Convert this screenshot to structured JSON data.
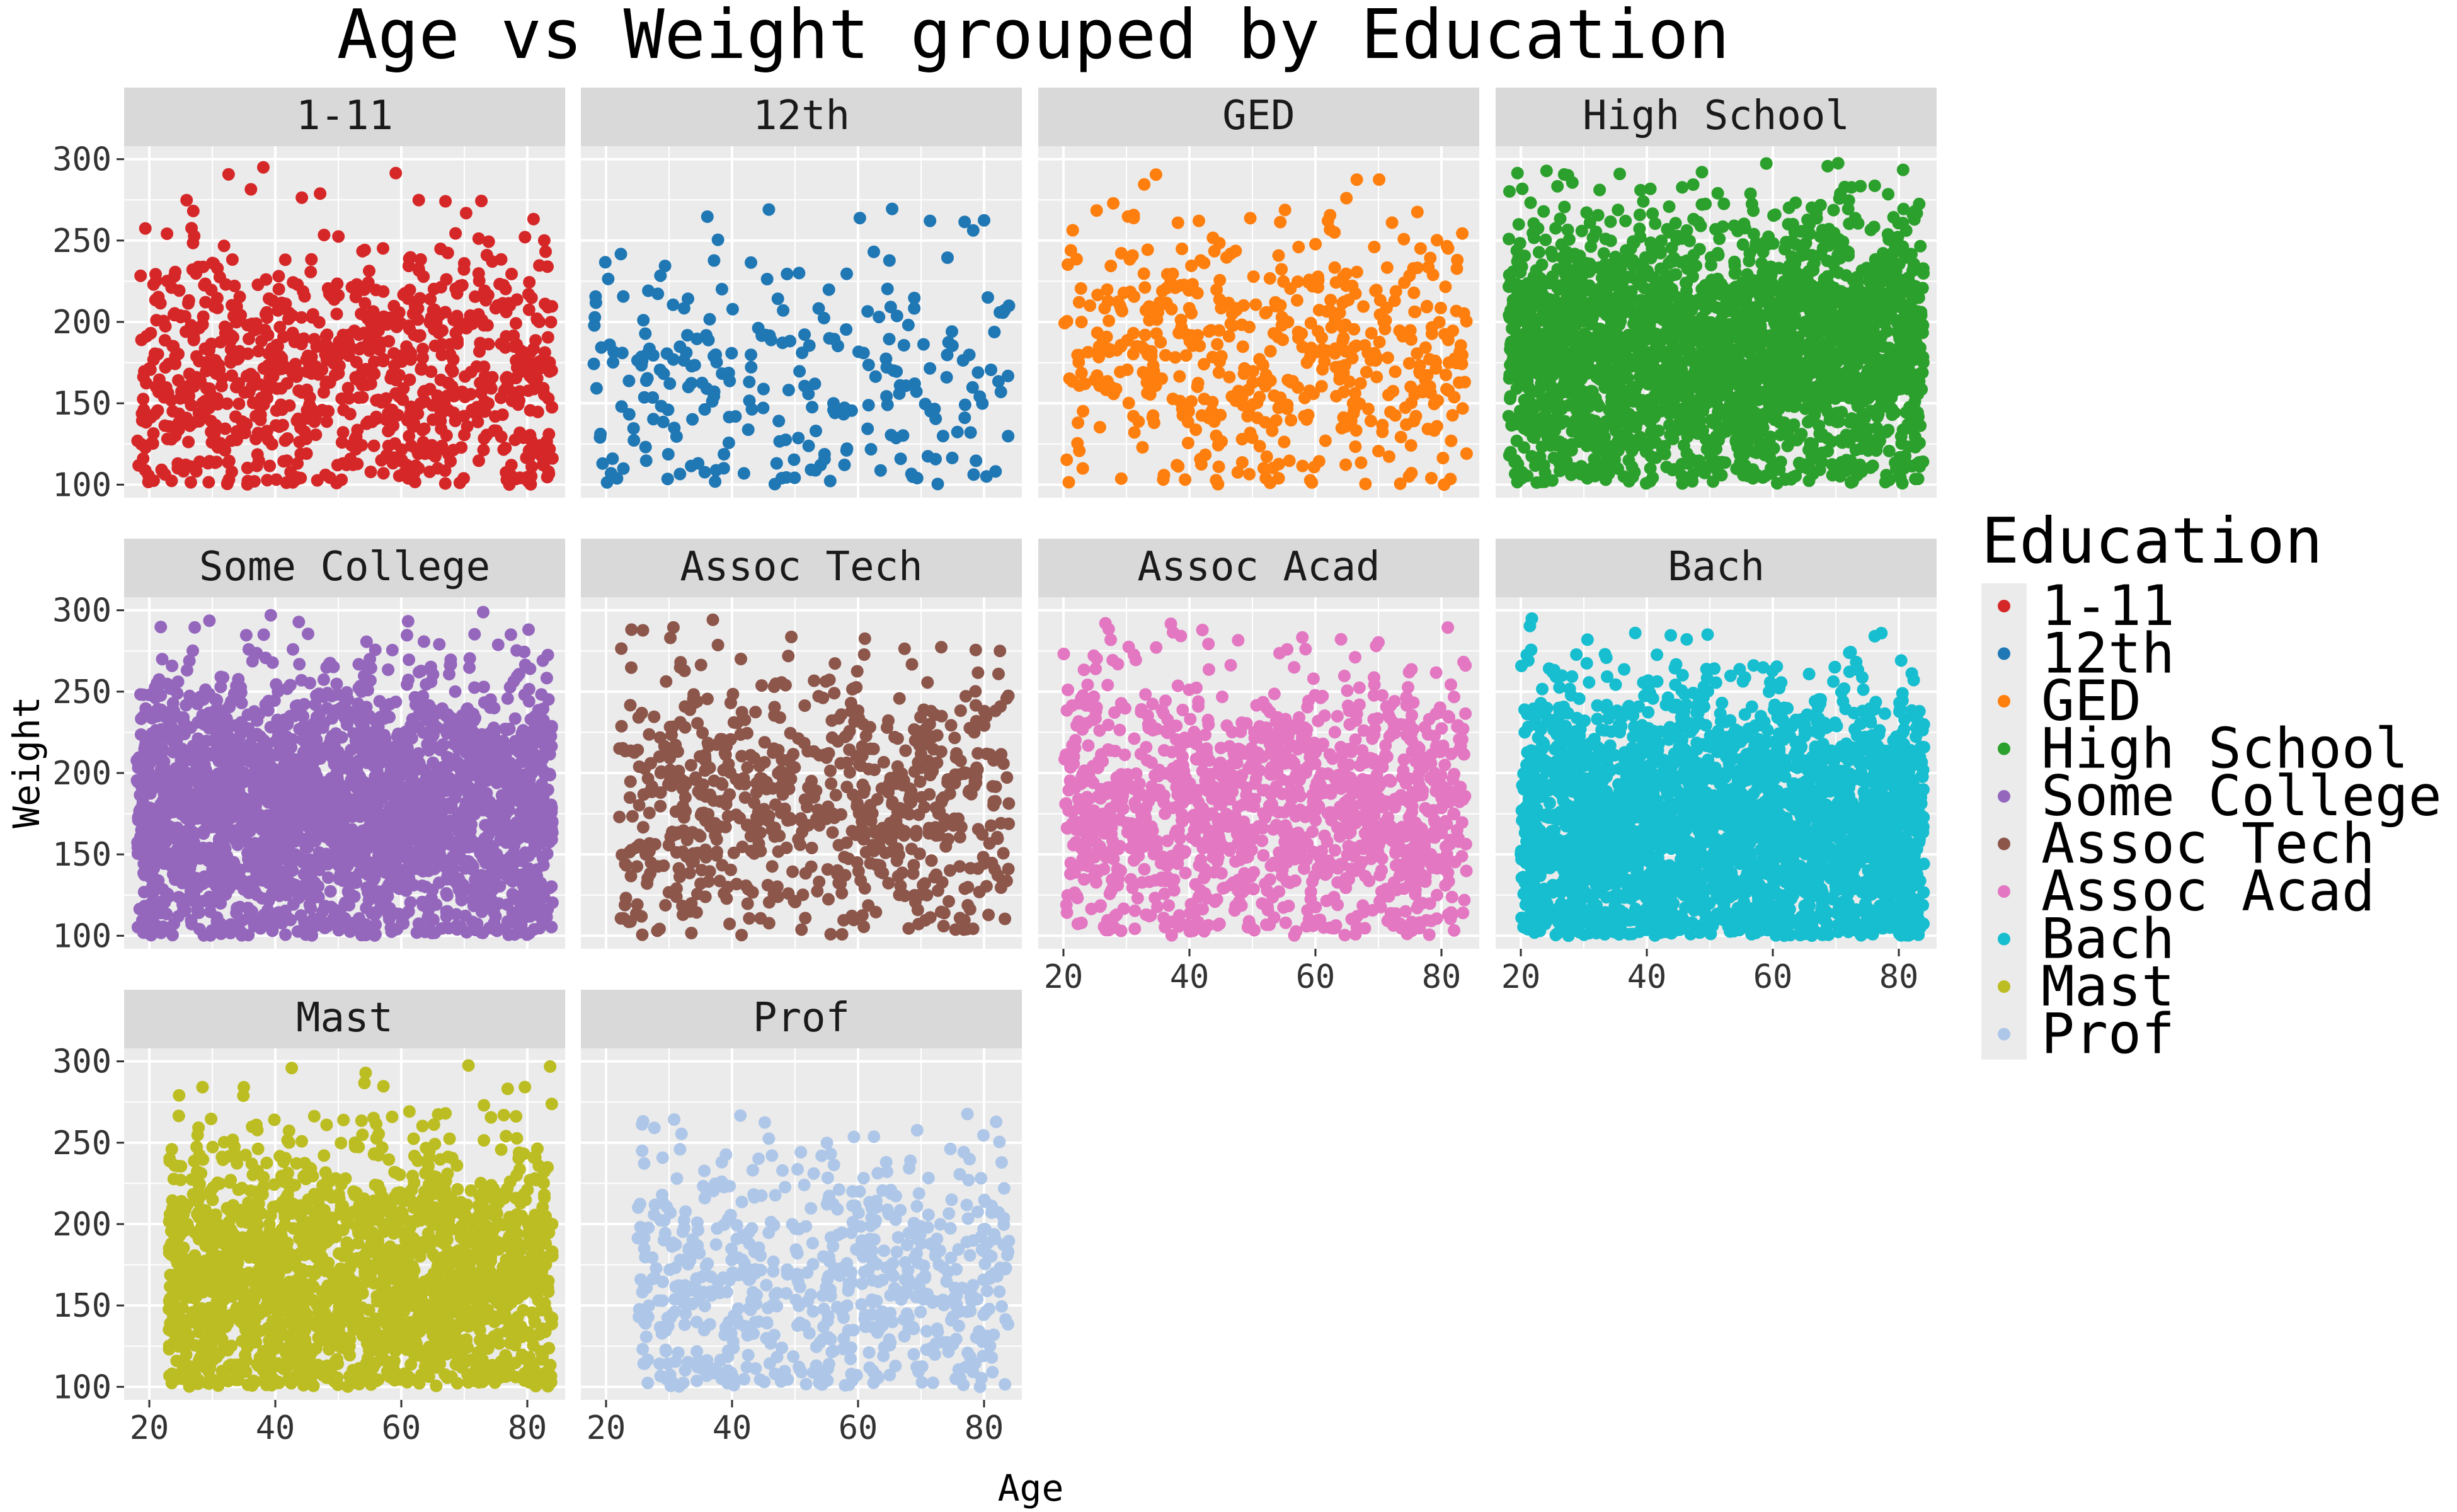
{
  "chart_data": {
    "type": "scatter",
    "title": "Age vs Weight grouped by Education",
    "xlabel": "Age",
    "ylabel": "Weight",
    "xlim": [
      16,
      86
    ],
    "ylim": [
      92,
      308
    ],
    "x_ticks": [
      20,
      40,
      60,
      80
    ],
    "y_ticks": [
      100,
      150,
      200,
      250,
      300
    ],
    "grid": true,
    "facet_layout": "4 columns, 3 rows",
    "legend": {
      "title": "Education",
      "position": "right"
    },
    "series": [
      {
        "name": "1-11",
        "color": "#D62728",
        "n": 900,
        "x_range": [
          18,
          84
        ],
        "y_range": [
          100,
          296
        ],
        "y_center": 168
      },
      {
        "name": "12th",
        "color": "#1F77B4",
        "n": 260,
        "x_range": [
          18,
          84
        ],
        "y_range": [
          100,
          276
        ],
        "y_center": 170
      },
      {
        "name": "GED",
        "color": "#FF7F0E",
        "n": 520,
        "x_range": [
          20,
          84
        ],
        "y_range": [
          100,
          297
        ],
        "y_center": 178
      },
      {
        "name": "High School",
        "color": "#2CA02C",
        "n": 2600,
        "x_range": [
          18,
          84
        ],
        "y_range": [
          100,
          299
        ],
        "y_center": 182
      },
      {
        "name": "Some College",
        "color": "#9467BD",
        "n": 2600,
        "x_range": [
          18,
          84
        ],
        "y_range": [
          100,
          299
        ],
        "y_center": 178
      },
      {
        "name": "Assoc Tech",
        "color": "#8C564B",
        "n": 700,
        "x_range": [
          22,
          84
        ],
        "y_range": [
          100,
          295
        ],
        "y_center": 180
      },
      {
        "name": "Assoc Acad",
        "color": "#E377C2",
        "n": 1200,
        "x_range": [
          20,
          84
        ],
        "y_range": [
          100,
          297
        ],
        "y_center": 178
      },
      {
        "name": "Bach",
        "color": "#17BECF",
        "n": 2800,
        "x_range": [
          20,
          84
        ],
        "y_range": [
          100,
          297
        ],
        "y_center": 165
      },
      {
        "name": "Mast",
        "color": "#BCBD22",
        "n": 1900,
        "x_range": [
          23,
          84
        ],
        "y_range": [
          100,
          298
        ],
        "y_center": 165
      },
      {
        "name": "Prof",
        "color": "#AEC7E8",
        "n": 650,
        "x_range": [
          25,
          84
        ],
        "y_range": [
          100,
          295
        ],
        "y_center": 162
      }
    ]
  }
}
